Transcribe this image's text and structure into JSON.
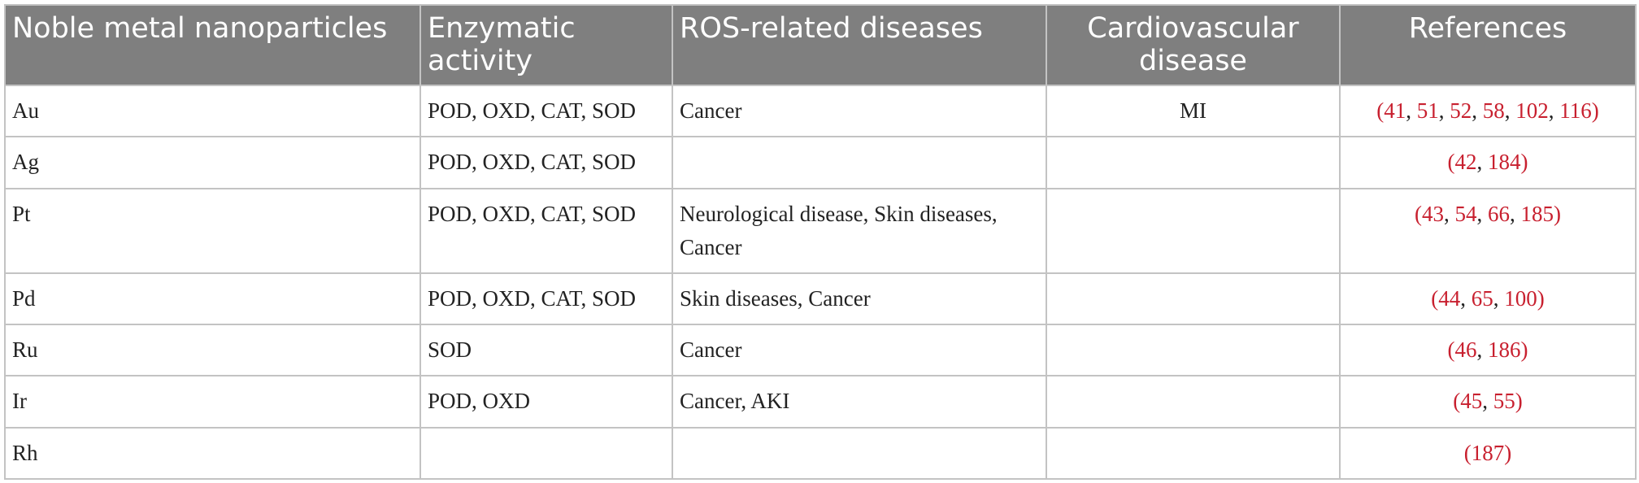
{
  "table": {
    "columns": [
      "Noble metal nanoparticles",
      "Enzymatic activity",
      "ROS-related diseases",
      "Cardiovascular disease",
      "References"
    ],
    "rows": [
      {
        "metal": "Au",
        "activity": "POD, OXD, CAT, SOD",
        "ros": "Cancer",
        "cardio": "MI",
        "refs": [
          "41",
          "51",
          "52",
          "58",
          "102",
          "116"
        ]
      },
      {
        "metal": "Ag",
        "activity": "POD, OXD, CAT, SOD",
        "ros": "",
        "cardio": "",
        "refs": [
          "42",
          "184"
        ]
      },
      {
        "metal": "Pt",
        "activity": "POD, OXD, CAT, SOD",
        "ros": "Neurological disease, Skin diseases, Cancer",
        "cardio": "",
        "refs": [
          "43",
          "54",
          "66",
          "185"
        ]
      },
      {
        "metal": "Pd",
        "activity": "POD, OXD, CAT, SOD",
        "ros": "Skin diseases, Cancer",
        "cardio": "",
        "refs": [
          "44",
          "65",
          "100"
        ]
      },
      {
        "metal": "Ru",
        "activity": "SOD",
        "ros": "Cancer",
        "cardio": "",
        "refs": [
          "46",
          "186"
        ]
      },
      {
        "metal": "Ir",
        "activity": "POD, OXD",
        "ros": "Cancer, AKI",
        "cardio": "",
        "refs": [
          "45",
          "55"
        ]
      },
      {
        "metal": "Rh",
        "activity": "",
        "ros": "",
        "cardio": "",
        "refs": [
          "187"
        ]
      }
    ]
  },
  "colors": {
    "header_bg": "#7f7f7f",
    "header_text": "#ffffff",
    "ref_link": "#c8202f",
    "border": "#c3c3c3"
  }
}
